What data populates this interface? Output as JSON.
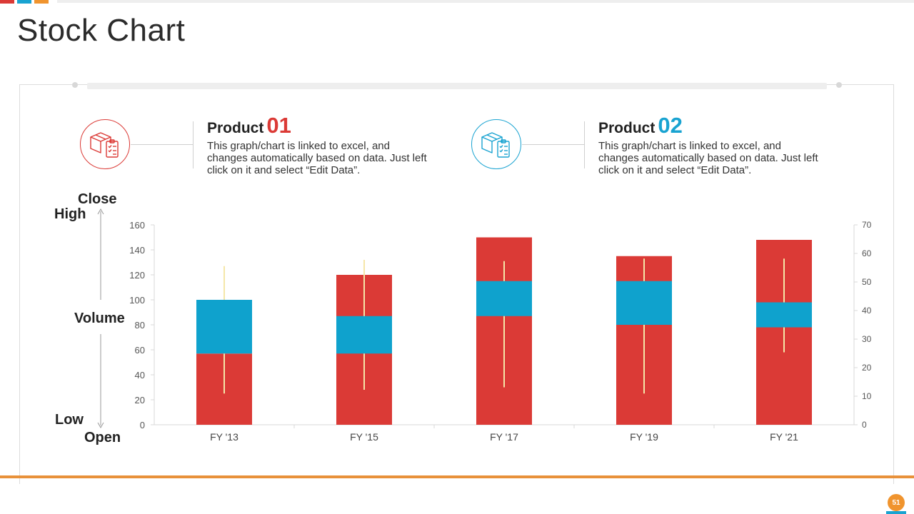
{
  "slide": {
    "title": "Stock Chart",
    "page_number": "51"
  },
  "colors": {
    "red": "#db3a36",
    "blue": "#0fa2cd",
    "orange": "#e8913a",
    "wick": "#f5e6a8"
  },
  "products": [
    {
      "label": "Product",
      "number": "01",
      "color": "#db3a36",
      "icon": "box-clipboard-icon",
      "description": "This graph/chart is linked to excel, and changes automatically based on data. Just left click on it and select “Edit Data”."
    },
    {
      "label": "Product",
      "number": "02",
      "color": "#0fa2cd",
      "icon": "box-clipboard-icon",
      "description": "This graph/chart is linked to excel, and changes automatically based on data. Just left click on it and select “Edit Data”."
    }
  ],
  "side_labels": {
    "close": "Close",
    "high": "High",
    "volume": "Volume",
    "low": "Low",
    "open": "Open"
  },
  "chart_data": {
    "type": "volume-open-high-low-close",
    "title": "",
    "categories": [
      "FY '13",
      "FY '15",
      "FY '17",
      "FY '19",
      "FY '21"
    ],
    "volume": [
      57,
      120,
      150,
      135,
      148
    ],
    "open": [
      57,
      57,
      87,
      80,
      78
    ],
    "close": [
      100,
      87,
      115,
      115,
      98
    ],
    "high": [
      127,
      132,
      131,
      133,
      133
    ],
    "low": [
      25,
      28,
      30,
      25,
      58
    ],
    "y_left": {
      "min": 0,
      "max": 160,
      "ticks": [
        0,
        20,
        40,
        60,
        80,
        100,
        120,
        140,
        160
      ]
    },
    "y_right": {
      "min": 0,
      "max": 70,
      "ticks": [
        0,
        10,
        20,
        30,
        40,
        50,
        60,
        70
      ]
    },
    "grid": false,
    "legend": "none"
  }
}
